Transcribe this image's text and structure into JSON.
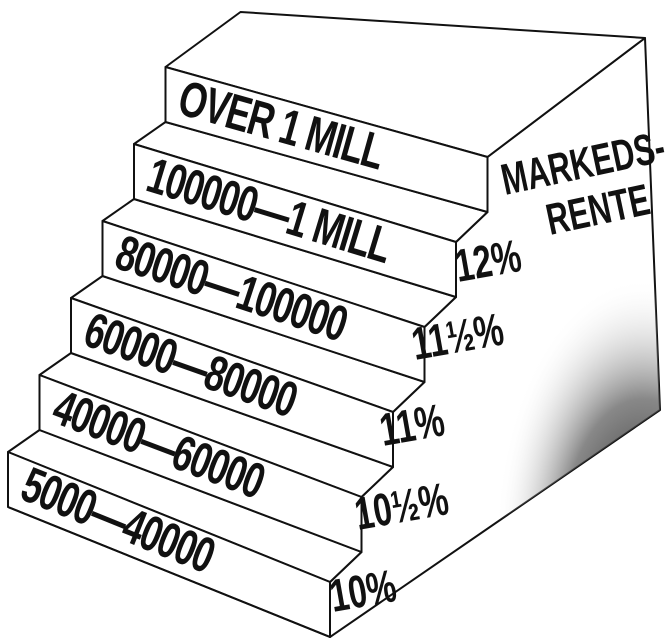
{
  "steps": [
    {
      "label": "5000—40000",
      "rate": "10%"
    },
    {
      "label": "40000—60000",
      "rate": "10½%"
    },
    {
      "label": "60000—80000",
      "rate": "11%"
    },
    {
      "label": "80000—100000",
      "rate": "11½%"
    },
    {
      "label": "100000—1 MILL",
      "rate": "12%"
    },
    {
      "label": "OVER 1 MILL",
      "rate": [
        "MARKEDS-",
        "RENTE"
      ]
    }
  ]
}
